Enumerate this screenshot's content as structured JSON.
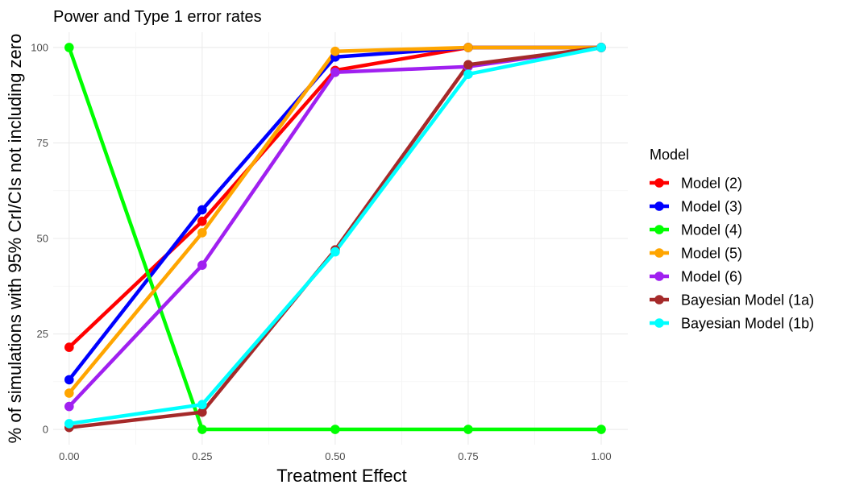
{
  "chart_data": {
    "type": "line",
    "title": "Power and Type 1 error rates",
    "xlabel": "Treatment Effect",
    "ylabel": "% of simulations with 95% CrI/CIs not including zero",
    "x": [
      0.0,
      0.25,
      0.5,
      0.75,
      1.0
    ],
    "x_tick_labels": [
      "0.00",
      "0.25",
      "0.50",
      "0.75",
      "1.00"
    ],
    "y_ticks": [
      0,
      25,
      50,
      75,
      100
    ],
    "y_tick_labels": [
      "0",
      "25",
      "50",
      "75",
      "100"
    ],
    "xlim": [
      -0.03,
      1.05
    ],
    "ylim": [
      -4,
      104
    ],
    "grid": true,
    "legend_title": "Model",
    "legend_position": "right",
    "series": [
      {
        "name": "Model (2)",
        "color": "#ff0000",
        "values": [
          21.5,
          54.5,
          94,
          100,
          100
        ]
      },
      {
        "name": "Model (3)",
        "color": "#0000ff",
        "values": [
          13,
          57.5,
          97.5,
          100,
          100
        ]
      },
      {
        "name": "Model (4)",
        "color": "#00ff00",
        "values": [
          100,
          0,
          0,
          0,
          0
        ]
      },
      {
        "name": "Model (5)",
        "color": "#ffa500",
        "values": [
          9.5,
          51.5,
          99,
          100,
          100
        ]
      },
      {
        "name": "Model (6)",
        "color": "#a020f0",
        "values": [
          6,
          43,
          93.5,
          95,
          100
        ]
      },
      {
        "name": "Bayesian Model (1a)",
        "color": "#a52a2a",
        "values": [
          0.5,
          4.5,
          47,
          95.5,
          100
        ]
      },
      {
        "name": "Bayesian Model (1b)",
        "color": "#00ffff",
        "values": [
          1.5,
          6.5,
          46.5,
          93,
          100
        ]
      }
    ]
  }
}
